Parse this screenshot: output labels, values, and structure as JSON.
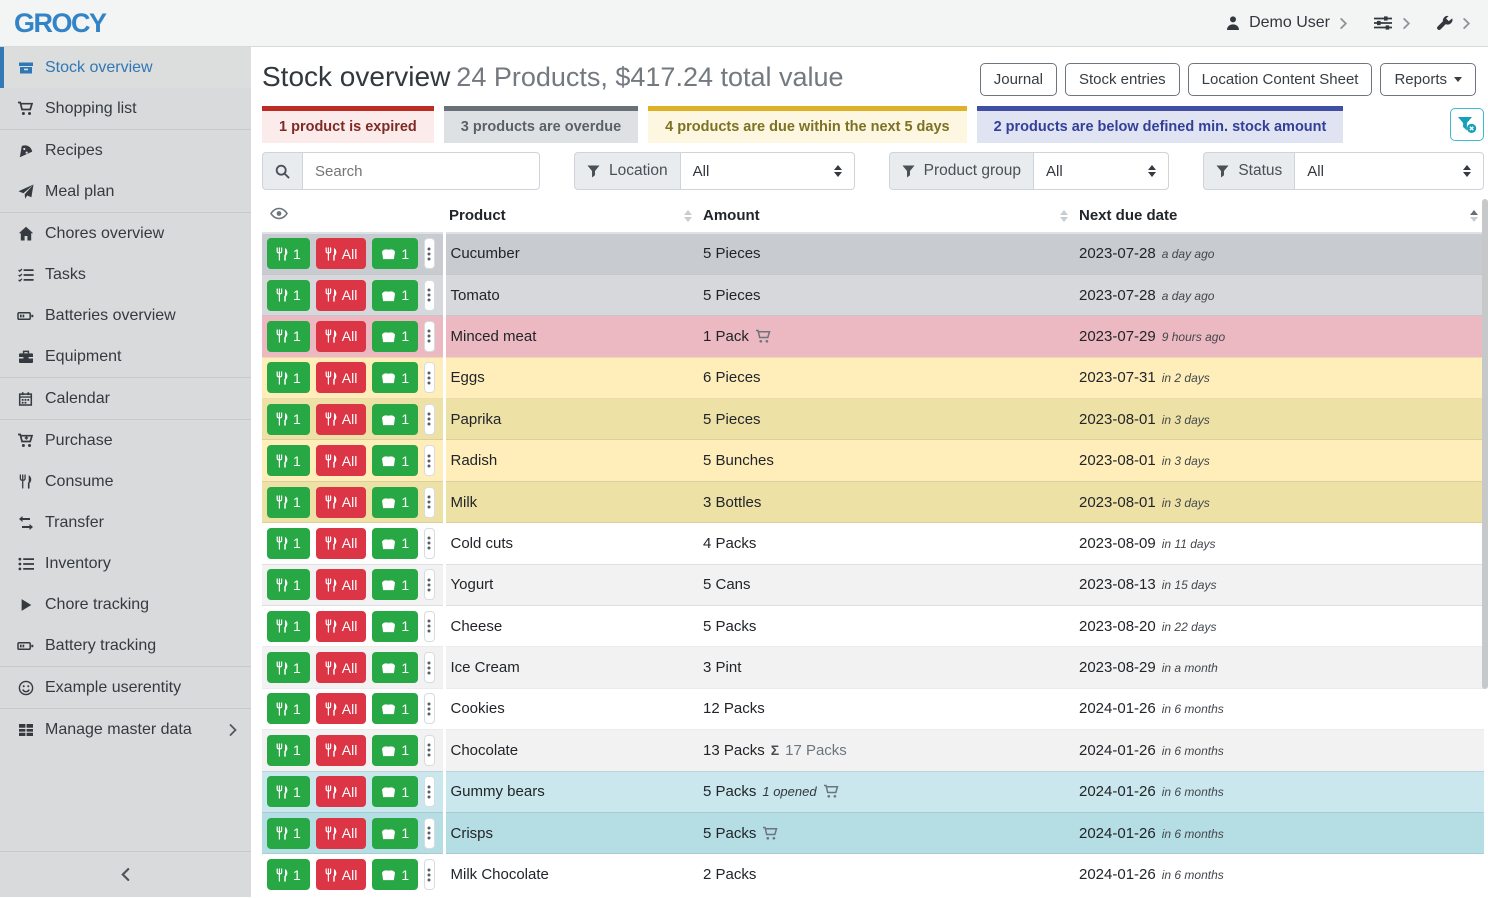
{
  "topbar": {
    "logo": "GROCY",
    "user": "Demo User"
  },
  "sidebar": {
    "groups": [
      {
        "items": [
          {
            "icon": "stock-overview-icon",
            "label": "Stock overview",
            "active": true
          },
          {
            "icon": "shopping-cart-icon",
            "label": "Shopping list"
          }
        ]
      },
      {
        "items": [
          {
            "icon": "pizza-slice-icon",
            "label": "Recipes"
          },
          {
            "icon": "paper-plane-icon",
            "label": "Meal plan"
          }
        ]
      },
      {
        "items": [
          {
            "icon": "home-icon",
            "label": "Chores overview"
          },
          {
            "icon": "tasks-icon",
            "label": "Tasks"
          },
          {
            "icon": "battery-icon",
            "label": "Batteries overview"
          },
          {
            "icon": "toolbox-icon",
            "label": "Equipment"
          }
        ]
      },
      {
        "items": [
          {
            "icon": "calendar-icon",
            "label": "Calendar"
          }
        ]
      },
      {
        "items": [
          {
            "icon": "cart-plus-icon",
            "label": "Purchase"
          },
          {
            "icon": "utensils-icon",
            "label": "Consume"
          },
          {
            "icon": "transfer-icon",
            "label": "Transfer"
          },
          {
            "icon": "list-icon",
            "label": "Inventory"
          },
          {
            "icon": "play-icon",
            "label": "Chore tracking"
          },
          {
            "icon": "battery-icon",
            "label": "Battery tracking"
          }
        ]
      },
      {
        "items": [
          {
            "icon": "smiley-icon",
            "label": "Example userentity"
          }
        ]
      },
      {
        "items": [
          {
            "icon": "table-icon",
            "label": "Manage master data",
            "chevron": true
          }
        ]
      }
    ]
  },
  "header": {
    "title": "Stock overview",
    "subtitle": "24 Products, $417.24 total value",
    "buttons": [
      "Journal",
      "Stock entries",
      "Location Content Sheet",
      "Reports"
    ]
  },
  "banners": [
    {
      "type": "expired",
      "text": "1 product is expired"
    },
    {
      "type": "overdue",
      "text": "3 products are overdue"
    },
    {
      "type": "due",
      "text": "4 products are due within the next 5 days"
    },
    {
      "type": "belowmin",
      "text": "2 products are below defined min. stock amount"
    }
  ],
  "filters": {
    "search_placeholder": "Search",
    "location_label": "Location",
    "location_value": "All",
    "product_group_label": "Product group",
    "product_group_value": "All",
    "status_label": "Status",
    "status_value": "All"
  },
  "table": {
    "columns": [
      "Product",
      "Amount",
      "Next due date"
    ],
    "row_buttons": {
      "consume_one": "1",
      "consume_all": "All",
      "open_one": "1"
    },
    "rows": [
      {
        "product": "Cucumber",
        "amount": "5 Pieces",
        "cart": false,
        "opened": "",
        "sum": "",
        "date": "2023-07-28",
        "relative": "a day ago",
        "status": "overdue"
      },
      {
        "product": "Tomato",
        "amount": "5 Pieces",
        "cart": false,
        "opened": "",
        "sum": "",
        "date": "2023-07-28",
        "relative": "a day ago",
        "status": "overdue"
      },
      {
        "product": "Minced meat",
        "amount": "1 Pack",
        "cart": true,
        "opened": "",
        "sum": "",
        "date": "2023-07-29",
        "relative": "9 hours ago",
        "status": "expired"
      },
      {
        "product": "Eggs",
        "amount": "6 Pieces",
        "cart": false,
        "opened": "",
        "sum": "",
        "date": "2023-07-31",
        "relative": "in 2 days",
        "status": "due"
      },
      {
        "product": "Paprika",
        "amount": "5 Pieces",
        "cart": false,
        "opened": "",
        "sum": "",
        "date": "2023-08-01",
        "relative": "in 3 days",
        "status": "due"
      },
      {
        "product": "Radish",
        "amount": "5 Bunches",
        "cart": false,
        "opened": "",
        "sum": "",
        "date": "2023-08-01",
        "relative": "in 3 days",
        "status": "due"
      },
      {
        "product": "Milk",
        "amount": "3 Bottles",
        "cart": false,
        "opened": "",
        "sum": "",
        "date": "2023-08-01",
        "relative": "in 3 days",
        "status": "due"
      },
      {
        "product": "Cold cuts",
        "amount": "4 Packs",
        "cart": false,
        "opened": "",
        "sum": "",
        "date": "2023-08-09",
        "relative": "in 11 days",
        "status": "none"
      },
      {
        "product": "Yogurt",
        "amount": "5 Cans",
        "cart": false,
        "opened": "",
        "sum": "",
        "date": "2023-08-13",
        "relative": "in 15 days",
        "status": "none"
      },
      {
        "product": "Cheese",
        "amount": "5 Packs",
        "cart": false,
        "opened": "",
        "sum": "",
        "date": "2023-08-20",
        "relative": "in 22 days",
        "status": "none"
      },
      {
        "product": "Ice Cream",
        "amount": "3 Pint",
        "cart": false,
        "opened": "",
        "sum": "",
        "date": "2023-08-29",
        "relative": "in a month",
        "status": "none"
      },
      {
        "product": "Cookies",
        "amount": "12 Packs",
        "cart": false,
        "opened": "",
        "sum": "",
        "date": "2024-01-26",
        "relative": "in 6 months",
        "status": "none"
      },
      {
        "product": "Chocolate",
        "amount": "13 Packs",
        "cart": false,
        "opened": "",
        "sum": "17 Packs",
        "date": "2024-01-26",
        "relative": "in 6 months",
        "status": "none"
      },
      {
        "product": "Gummy bears",
        "amount": "5 Packs",
        "cart": true,
        "opened": "1 opened",
        "sum": "",
        "date": "2024-01-26",
        "relative": "in 6 months",
        "status": "belowmin"
      },
      {
        "product": "Crisps",
        "amount": "5 Packs",
        "cart": true,
        "opened": "",
        "sum": "",
        "date": "2024-01-26",
        "relative": "in 6 months",
        "status": "belowmin"
      },
      {
        "product": "Milk Chocolate",
        "amount": "2 Packs",
        "cart": false,
        "opened": "",
        "sum": "",
        "date": "2024-01-26",
        "relative": "in 6 months",
        "status": "none"
      }
    ]
  },
  "colors": {
    "accent": "#3284c7",
    "success": "#28a745",
    "danger": "#dc3545",
    "info": "#17a2b8"
  }
}
